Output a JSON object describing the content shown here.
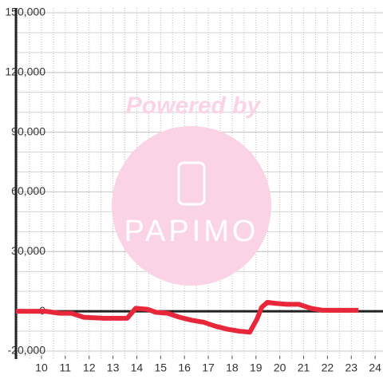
{
  "chart_data": {
    "type": "line",
    "watermark": {
      "title": "Powered by",
      "logo": "PAPIMO"
    },
    "x": [
      8.93,
      10.17,
      10.77,
      11.27,
      11.77,
      12.6,
      13.6,
      13.95,
      14.45,
      14.8,
      15.3,
      15.8,
      16.3,
      16.8,
      17.3,
      17.8,
      18.3,
      18.74,
      19.04,
      19.24,
      19.48,
      19.8,
      20.3,
      20.8,
      21.3,
      21.8,
      22.3,
      23.3
    ],
    "series": [
      {
        "color": "#e8283a",
        "values": [
          0,
          0,
          -1000,
          -1000,
          -3000,
          -3500,
          -3500,
          1500,
          1000,
          -500,
          -1000,
          -3000,
          -4500,
          -5500,
          -7500,
          -9000,
          -10000,
          -10500,
          -4000,
          2000,
          4500,
          4000,
          3500,
          3500,
          1500,
          500,
          500,
          500
        ]
      }
    ],
    "xlim": [
      8.93,
      24.33
    ],
    "xticks": [
      10,
      11,
      12,
      13,
      14,
      15,
      16,
      17,
      18,
      19,
      20,
      21,
      22,
      23,
      24
    ],
    "ylim": [
      -20000,
      150000
    ],
    "yticks": [
      {
        "value": -20000,
        "label": "-20,000"
      },
      0,
      {
        "value": 30000,
        "label": "30,000"
      },
      {
        "value": 60000,
        "label": "60,000"
      },
      {
        "value": 90000,
        "label": "90,000"
      },
      {
        "value": 120000,
        "label": "120,000"
      },
      {
        "value": 150000,
        "label": "150,000"
      }
    ],
    "y_grid_step": 10000,
    "x_grid_step": 0.5,
    "grid": true
  }
}
